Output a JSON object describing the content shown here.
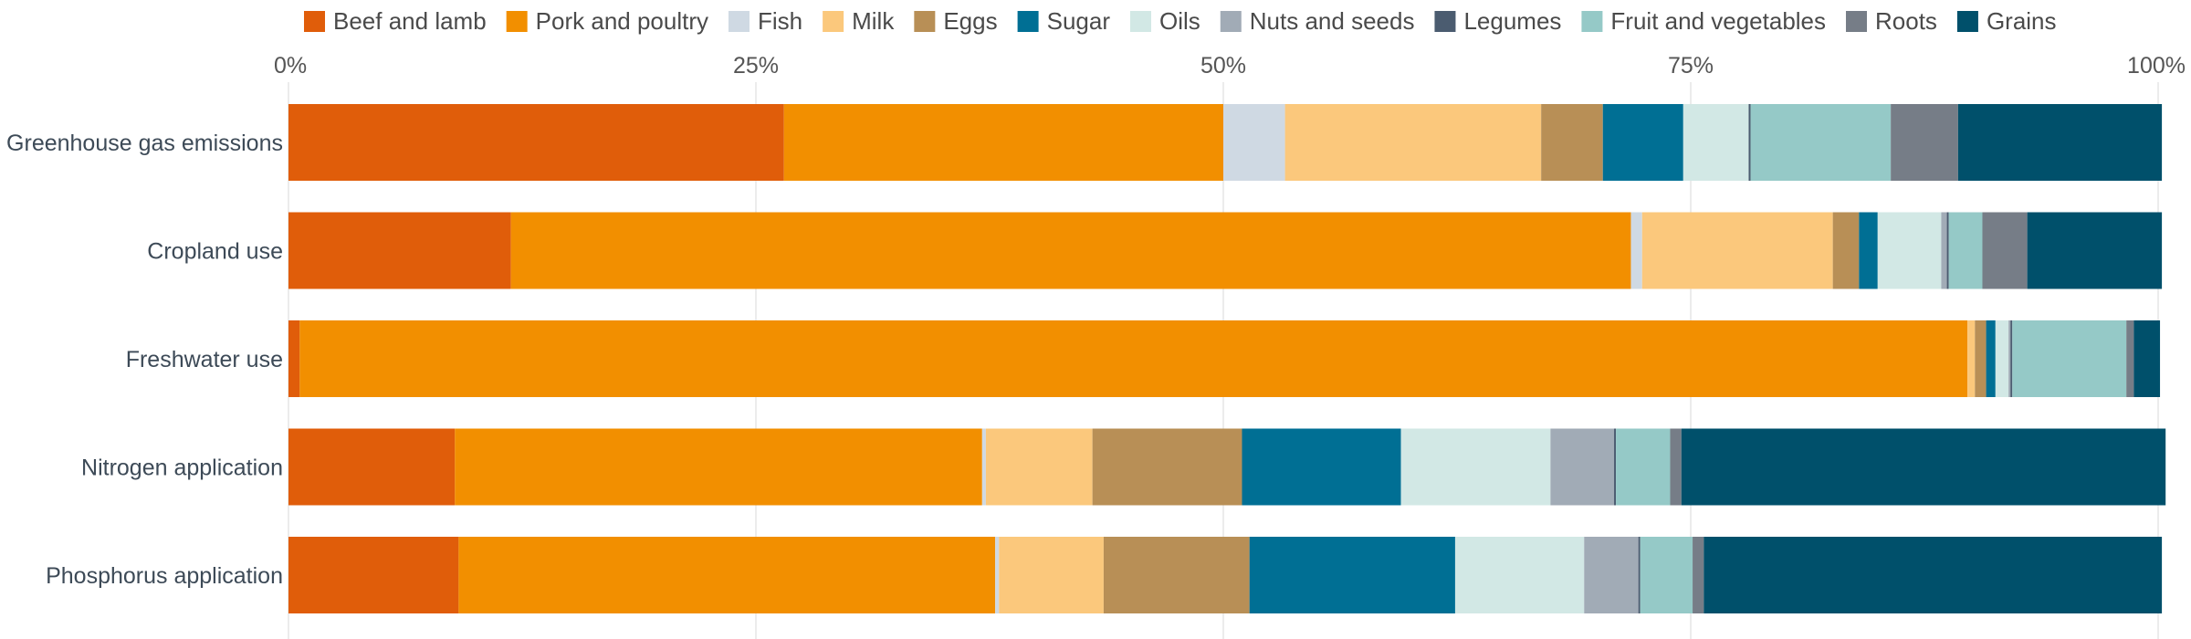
{
  "chart_data": {
    "type": "bar",
    "orientation": "horizontal",
    "stacked": true,
    "normalized": true,
    "xlim": [
      0,
      100
    ],
    "x_ticks": [
      "0%",
      "25%",
      "50%",
      "75%",
      "100%"
    ],
    "x_tick_values": [
      0,
      25,
      50,
      75,
      100
    ],
    "x_axis_position": "top",
    "grid": true,
    "legend_position": "top",
    "categories": [
      "Greenhouse gas emissions",
      "Cropland use",
      "Freshwater use",
      "Nitrogen application",
      "Phosphorus application"
    ],
    "series": [
      {
        "name": "Beef and lamb",
        "color": "#e05d0a",
        "values": [
          26.5,
          11.9,
          0.6,
          8.9,
          9.1
        ]
      },
      {
        "name": "Pork and poultry",
        "color": "#f28f00",
        "values": [
          23.5,
          59.9,
          89.2,
          28.2,
          28.7
        ]
      },
      {
        "name": "Fish",
        "color": "#cfd9e3",
        "values": [
          3.3,
          0.6,
          0.0,
          0.2,
          0.2
        ]
      },
      {
        "name": "Milk",
        "color": "#fbc87c",
        "values": [
          13.7,
          10.2,
          0.4,
          5.7,
          5.6
        ]
      },
      {
        "name": "Eggs",
        "color": "#b88f56",
        "values": [
          3.3,
          1.4,
          0.6,
          8.0,
          7.8
        ]
      },
      {
        "name": "Sugar",
        "color": "#006f94",
        "values": [
          4.3,
          1.0,
          0.5,
          8.5,
          11.0
        ]
      },
      {
        "name": "Oils",
        "color": "#d2e8e5",
        "values": [
          3.5,
          3.4,
          0.7,
          8.0,
          6.9
        ]
      },
      {
        "name": "Nuts and seeds",
        "color": "#a1abb6",
        "values": [
          0.0,
          0.3,
          0.1,
          3.4,
          2.9
        ]
      },
      {
        "name": "Legumes",
        "color": "#4b5c70",
        "values": [
          0.1,
          0.1,
          0.1,
          0.1,
          0.1
        ]
      },
      {
        "name": "Fruit and vegetables",
        "color": "#95c9c7",
        "values": [
          7.5,
          1.8,
          6.1,
          2.9,
          2.8
        ]
      },
      {
        "name": "Roots",
        "color": "#767d87",
        "values": [
          3.6,
          2.4,
          0.4,
          0.6,
          0.6
        ]
      },
      {
        "name": "Grains",
        "color": "#00506b",
        "values": [
          10.9,
          7.2,
          1.4,
          25.9,
          24.5
        ]
      }
    ]
  }
}
